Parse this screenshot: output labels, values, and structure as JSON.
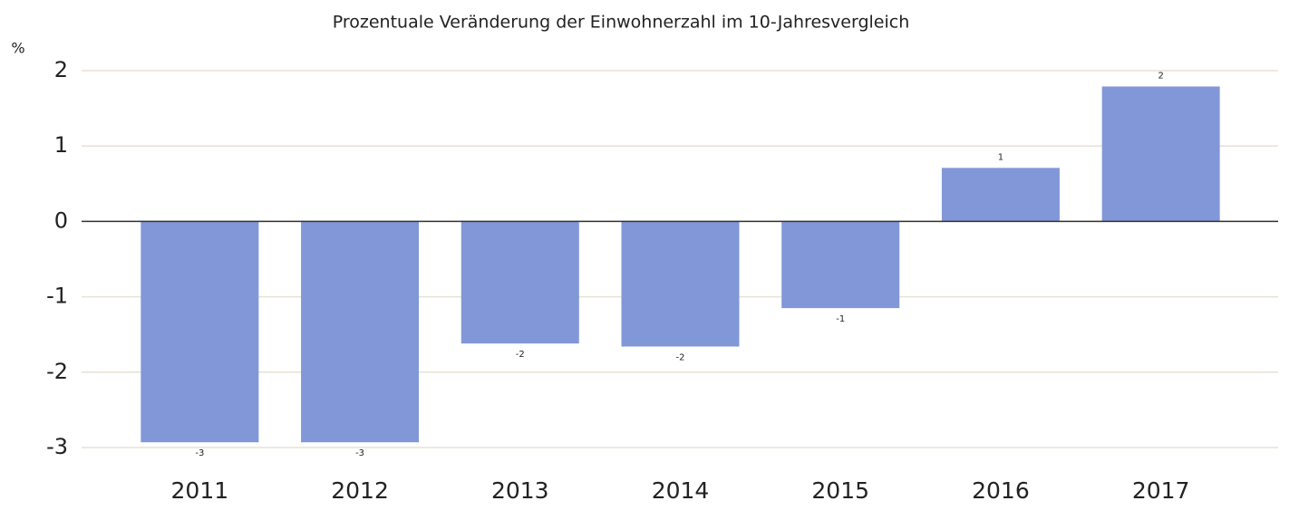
{
  "chart_data": {
    "type": "bar",
    "title": "Prozentuale Veränderung der Einwohnerzahl im 10-Jahresvergleich",
    "y_label": "%",
    "categories": [
      "2011",
      "2012",
      "2013",
      "2014",
      "2015",
      "2016",
      "2017"
    ],
    "values": [
      -2.93,
      -2.93,
      -1.62,
      -1.66,
      -1.15,
      0.71,
      1.79
    ],
    "value_labels": [
      "-3",
      "-3",
      "-2",
      "-2",
      "-1",
      "1",
      "2"
    ],
    "color": "#8197d8",
    "ylim": [
      -3,
      2
    ],
    "yticks": [
      -3,
      -2,
      -1,
      0,
      1,
      2
    ],
    "grid": true
  }
}
